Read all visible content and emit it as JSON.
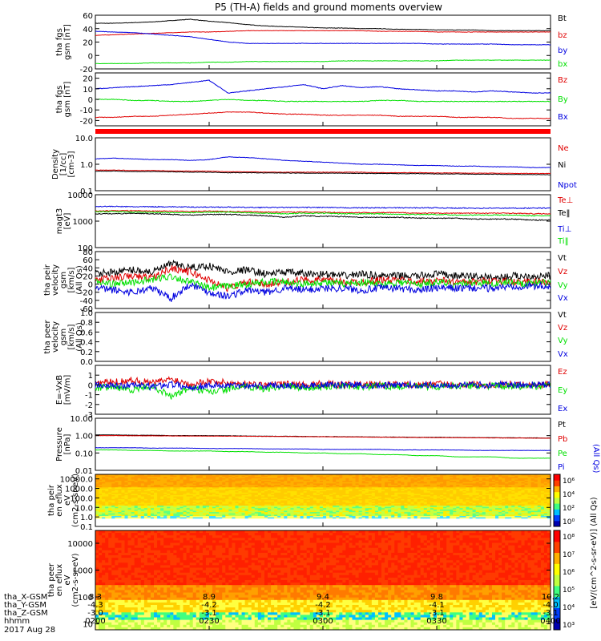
{
  "title": "P5 (TH-A) fields and ground moments overview",
  "date_label": "2017 Aug 28",
  "colors": {
    "black": "#000000",
    "red": "#e00000",
    "green": "#00e000",
    "blue": "#0000e0",
    "red_bar": "#ff0000"
  },
  "chart_data": [
    {
      "type": "line",
      "ylabel": "tha fgs gsm [nT]",
      "yticks": [
        "60",
        "40",
        "20",
        "0",
        "-20"
      ],
      "ylim": [
        -20,
        60
      ],
      "legend": [
        "Bt",
        "bz",
        "by",
        "bx"
      ],
      "series": [
        {
          "name": "Bt",
          "color": "#000000",
          "values": [
            48,
            48,
            49,
            50,
            52,
            54,
            51,
            49,
            46,
            44,
            43,
            42,
            41,
            41,
            40,
            40,
            39,
            39,
            38,
            38,
            38,
            37,
            37,
            37,
            37
          ]
        },
        {
          "name": "bz",
          "color": "#e00000",
          "values": [
            30,
            31,
            32,
            33,
            34,
            35,
            35,
            36,
            37,
            37,
            37,
            37,
            37,
            37,
            37,
            36,
            36,
            36,
            35,
            35,
            35,
            35,
            35,
            35,
            35
          ]
        },
        {
          "name": "by",
          "color": "#0000e0",
          "values": [
            36,
            35,
            34,
            32,
            30,
            28,
            24,
            20,
            18,
            18,
            18,
            18,
            18,
            18,
            18,
            18,
            18,
            18,
            17,
            17,
            17,
            17,
            16,
            16,
            16
          ]
        },
        {
          "name": "bx",
          "color": "#00e000",
          "values": [
            -12,
            -12,
            -12,
            -11,
            -11,
            -11,
            -10,
            -10,
            -9,
            -9,
            -9,
            -9,
            -9,
            -8,
            -8,
            -8,
            -8,
            -8,
            -8,
            -7,
            -7,
            -7,
            -7,
            -7,
            -7
          ]
        }
      ]
    },
    {
      "type": "line",
      "ylabel": "tha fgs gsm [nT]",
      "yticks": [
        "20",
        "10",
        "0",
        "-10",
        "-20"
      ],
      "ylim": [
        -25,
        25
      ],
      "legend": [
        "Bz",
        "By",
        "Bx"
      ],
      "series": [
        {
          "name": "Bz",
          "color": "#e00000",
          "values": [
            -17,
            -17,
            -16,
            -16,
            -15,
            -14,
            -13,
            -12,
            -12,
            -13,
            -14,
            -14,
            -15,
            -15,
            -15,
            -15,
            -16,
            -16,
            -16,
            -17,
            -17,
            -17,
            -18,
            -18,
            -18
          ]
        },
        {
          "name": "By",
          "color": "#00e000",
          "values": [
            0,
            0,
            -1,
            -1,
            -2,
            -2,
            -1,
            0,
            -1,
            -1,
            -2,
            -2,
            -2,
            -2,
            -2,
            -1,
            -1,
            -2,
            -2,
            -2,
            -2,
            -2,
            -2,
            -2,
            -2
          ]
        },
        {
          "name": "Bx",
          "color": "#0000e0",
          "values": [
            10,
            11,
            12,
            13,
            14,
            16,
            18,
            6,
            8,
            10,
            12,
            14,
            10,
            13,
            11,
            12,
            10,
            9,
            8,
            8,
            7,
            8,
            7,
            6,
            6
          ]
        }
      ]
    },
    {
      "type": "line",
      "ylabel": "Density [1/cc] [cm-3]",
      "yscale": "log",
      "yticks": [
        "10.0",
        "1.0",
        "0.1"
      ],
      "ylim": [
        0.1,
        10
      ],
      "legend": [
        "Ne",
        "Ni",
        "Npot"
      ],
      "series": [
        {
          "name": "Ne",
          "color": "#e00000",
          "values": [
            0.6,
            0.6,
            0.58,
            0.58,
            0.56,
            0.55,
            0.55,
            0.52,
            0.52,
            0.5,
            0.5,
            0.5,
            0.5,
            0.5,
            0.5,
            0.48,
            0.48,
            0.48,
            0.47,
            0.47,
            0.46,
            0.46,
            0.45,
            0.45,
            0.45
          ]
        },
        {
          "name": "Ni",
          "color": "#000000",
          "values": [
            0.55,
            0.55,
            0.53,
            0.53,
            0.52,
            0.5,
            0.5,
            0.48,
            0.48,
            0.47,
            0.47,
            0.46,
            0.46,
            0.46,
            0.45,
            0.45,
            0.44,
            0.44,
            0.43,
            0.43,
            0.42,
            0.42,
            0.41,
            0.41,
            0.4
          ]
        },
        {
          "name": "Npot",
          "color": "#0000e0",
          "values": [
            1.6,
            1.7,
            1.6,
            1.5,
            1.5,
            1.4,
            1.5,
            1.9,
            1.8,
            1.6,
            1.4,
            1.3,
            1.2,
            1.1,
            1.0,
            1.0,
            0.95,
            0.9,
            0.9,
            0.85,
            0.85,
            0.8,
            0.8,
            0.75,
            0.75
          ]
        }
      ]
    },
    {
      "type": "line",
      "ylabel": "magt3 [eV]",
      "yscale": "log",
      "yticks": [
        "10000",
        "1000",
        "100"
      ],
      "ylim": [
        100,
        10000
      ],
      "legend": [
        "Te⊥",
        "Te‖",
        "Ti⊥",
        "Ti‖"
      ],
      "series": [
        {
          "name": "Te⊥",
          "color": "#e00000",
          "values": [
            2400,
            2500,
            2500,
            2400,
            2400,
            2300,
            2400,
            2300,
            2300,
            2200,
            2200,
            2200,
            2200,
            2100,
            2100,
            2100,
            2100,
            2000,
            2000,
            2000,
            2000,
            2000,
            2000,
            1900,
            1900
          ]
        },
        {
          "name": "Te‖",
          "color": "#000000",
          "values": [
            1900,
            1900,
            2000,
            1900,
            1800,
            1700,
            1800,
            1800,
            1700,
            1600,
            1400,
            1600,
            1500,
            1500,
            1400,
            1400,
            1400,
            1300,
            1300,
            1300,
            1200,
            1200,
            1200,
            1100,
            1100
          ]
        },
        {
          "name": "Ti⊥",
          "color": "#0000e0",
          "values": [
            3600,
            3600,
            3500,
            3500,
            3500,
            3400,
            3400,
            3400,
            3300,
            3300,
            3300,
            3300,
            3300,
            3200,
            3200,
            3200,
            3200,
            3200,
            3200,
            3100,
            3100,
            3100,
            3100,
            3100,
            3100
          ]
        },
        {
          "name": "Ti‖",
          "color": "#00e000",
          "values": [
            2300,
            2300,
            2200,
            2200,
            2100,
            2100,
            2200,
            2200,
            2100,
            2000,
            1900,
            2000,
            2000,
            1900,
            1900,
            1900,
            1800,
            1800,
            1800,
            1700,
            1700,
            1700,
            1700,
            1600,
            1600
          ]
        }
      ]
    },
    {
      "type": "line",
      "ylabel": "tha peir velocity gsm [km/s] (All Qs)",
      "yticks": [
        "80",
        "60",
        "40",
        "20",
        "0",
        "-20",
        "-40",
        "-60"
      ],
      "ylim": [
        -60,
        80
      ],
      "legend": [
        "Vt",
        "Vz",
        "Vy",
        "Vx"
      ],
      "series": [
        {
          "name": "Vt",
          "color": "#000000",
          "values": [
            25,
            30,
            35,
            30,
            50,
            40,
            45,
            30,
            35,
            25,
            30,
            25,
            25,
            20,
            25,
            20,
            20,
            20,
            25,
            20,
            20,
            15,
            20,
            20,
            20
          ]
        },
        {
          "name": "Vz",
          "color": "#e00000",
          "values": [
            10,
            15,
            20,
            15,
            40,
            30,
            10,
            -10,
            5,
            0,
            5,
            10,
            10,
            5,
            5,
            10,
            10,
            5,
            10,
            5,
            5,
            10,
            5,
            5,
            5
          ]
        },
        {
          "name": "Vy",
          "color": "#00e000",
          "values": [
            5,
            0,
            5,
            10,
            20,
            5,
            -10,
            -5,
            0,
            5,
            5,
            0,
            5,
            0,
            5,
            0,
            5,
            0,
            5,
            0,
            5,
            0,
            5,
            0,
            5
          ]
        },
        {
          "name": "Vx",
          "color": "#0000e0",
          "values": [
            -10,
            -15,
            -20,
            -10,
            -35,
            0,
            -20,
            -30,
            -15,
            -20,
            -10,
            -15,
            -10,
            -10,
            -15,
            -10,
            -10,
            -15,
            -10,
            -10,
            -10,
            -10,
            -5,
            -5,
            -5
          ]
        }
      ]
    },
    {
      "type": "line",
      "ylabel": "tha peer velocity gsm [km/s] (All Qs)",
      "yticks": [
        "1.0",
        "0.8",
        "0.6",
        "0.4",
        "0.2",
        "0.0"
      ],
      "ylim": [
        0,
        1
      ],
      "legend": [
        "Vt",
        "Vz",
        "Vy",
        "Vx"
      ],
      "series": []
    },
    {
      "type": "line",
      "ylabel": "E=-VxB [mV/m]",
      "yticks": [
        "1",
        "0",
        "-1",
        "-2",
        "-3"
      ],
      "ylim": [
        -3,
        2
      ],
      "legend": [
        "Ez",
        "Ey",
        "Ex"
      ],
      "series": [
        {
          "name": "Ez",
          "color": "#e00000",
          "values": [
            0.2,
            0.3,
            0.5,
            0.2,
            0.6,
            0.1,
            0.4,
            0.2,
            0.1,
            0.0,
            0.1,
            0.0,
            0.1,
            0.0,
            0.1,
            0.0,
            0.1,
            0.0,
            0.1,
            0.0,
            0.1,
            0.0,
            0.1,
            0.0,
            0.1
          ]
        },
        {
          "name": "Ey",
          "color": "#00e000",
          "values": [
            -0.3,
            -0.2,
            -0.5,
            -0.1,
            -1.2,
            -0.3,
            -0.8,
            -0.4,
            -0.2,
            -0.4,
            -0.1,
            -0.3,
            -0.2,
            -0.1,
            -0.2,
            -0.1,
            -0.2,
            -0.1,
            -0.2,
            -0.1,
            -0.1,
            -0.1,
            -0.2,
            -0.1,
            -0.1
          ]
        },
        {
          "name": "Ex",
          "color": "#0000e0",
          "values": [
            0.0,
            -0.1,
            0.0,
            -0.2,
            0.1,
            -0.3,
            0.0,
            -0.1,
            0.0,
            -0.1,
            0.0,
            -0.1,
            0.0,
            0.0,
            0.0,
            -0.1,
            0.0,
            0.0,
            0.0,
            0.0,
            0.0,
            0.0,
            0.0,
            0.0,
            0.0
          ]
        }
      ]
    },
    {
      "type": "line",
      "ylabel": "Pressure [nPa]",
      "yscale": "log",
      "yticks": [
        "10.00",
        "1.00",
        "0.10",
        "0.01"
      ],
      "ylim": [
        0.01,
        10
      ],
      "legend": [
        "Pt",
        "Pb",
        "Pe",
        "Pi"
      ],
      "side_label": "(All Qs)",
      "series": [
        {
          "name": "Pt",
          "color": "#000000",
          "values": [
            1.1,
            1.1,
            1.05,
            1.05,
            1.0,
            1.0,
            1.0,
            0.98,
            0.95,
            0.93,
            0.92,
            0.9,
            0.88,
            0.86,
            0.85,
            0.83,
            0.82,
            0.8,
            0.8,
            0.78,
            0.77,
            0.76,
            0.75,
            0.74,
            0.72
          ]
        },
        {
          "name": "Pb",
          "color": "#e00000",
          "values": [
            1.0,
            1.0,
            0.98,
            0.97,
            0.96,
            0.95,
            0.94,
            0.93,
            0.92,
            0.9,
            0.89,
            0.87,
            0.86,
            0.84,
            0.83,
            0.81,
            0.8,
            0.78,
            0.77,
            0.76,
            0.75,
            0.74,
            0.73,
            0.72,
            0.7
          ]
        },
        {
          "name": "Pe",
          "color": "#00e000",
          "values": [
            0.15,
            0.15,
            0.14,
            0.14,
            0.13,
            0.13,
            0.13,
            0.12,
            0.12,
            0.11,
            0.11,
            0.1,
            0.1,
            0.09,
            0.09,
            0.08,
            0.08,
            0.07,
            0.07,
            0.06,
            0.06,
            0.06,
            0.05,
            0.05,
            0.05
          ]
        },
        {
          "name": "Pi",
          "color": "#0000e0",
          "values": [
            0.2,
            0.2,
            0.2,
            0.19,
            0.19,
            0.19,
            0.18,
            0.18,
            0.18,
            0.17,
            0.17,
            0.17,
            0.16,
            0.16,
            0.16,
            0.16,
            0.15,
            0.15,
            0.15,
            0.15,
            0.14,
            0.14,
            0.14,
            0.14,
            0.14
          ]
        }
      ]
    },
    {
      "type": "heatmap",
      "ylabel": "tha peir en eflux eV (cm2-s-sr-eV)",
      "yscale": "log",
      "yticks": [
        "10000.0",
        "1000.0",
        "100.0",
        "10.0",
        "1.0",
        "0.1"
      ],
      "ylim": [
        0.1,
        30000
      ],
      "colorbar": {
        "ticks": [
          "10⁶",
          "10⁴",
          "10²",
          "10⁰"
        ]
      }
    },
    {
      "type": "heatmap",
      "ylabel": "tha peer en eflux eV (cm2-s-sr-eV)",
      "yscale": "log",
      "yticks": [
        "10000",
        "1000",
        "100",
        "10"
      ],
      "ylim": [
        6,
        30000
      ],
      "colorbar": {
        "ticks": [
          "10⁸",
          "10⁷",
          "10⁶",
          "10⁵",
          "10⁴",
          "10³"
        ]
      }
    }
  ],
  "colorbar_label": "[eV/(cm^2-s-sr-eV)] (All Qs)",
  "x_axis": {
    "rows": [
      {
        "label": "tha_X-GSM",
        "values": [
          "8.3",
          "8.9",
          "9.4",
          "9.8",
          "10.2"
        ]
      },
      {
        "label": "tha_Y-GSM",
        "values": [
          "-4.3",
          "-4.2",
          "-4.2",
          "-4.1",
          "-4.0"
        ]
      },
      {
        "label": "tha_Z-GSM",
        "values": [
          "-3.0",
          "-3.1",
          "-3.1",
          "-3.1",
          "-3.1"
        ]
      },
      {
        "label": "hhmm",
        "values": [
          "0200",
          "0230",
          "0300",
          "0330",
          "0400"
        ]
      }
    ]
  }
}
